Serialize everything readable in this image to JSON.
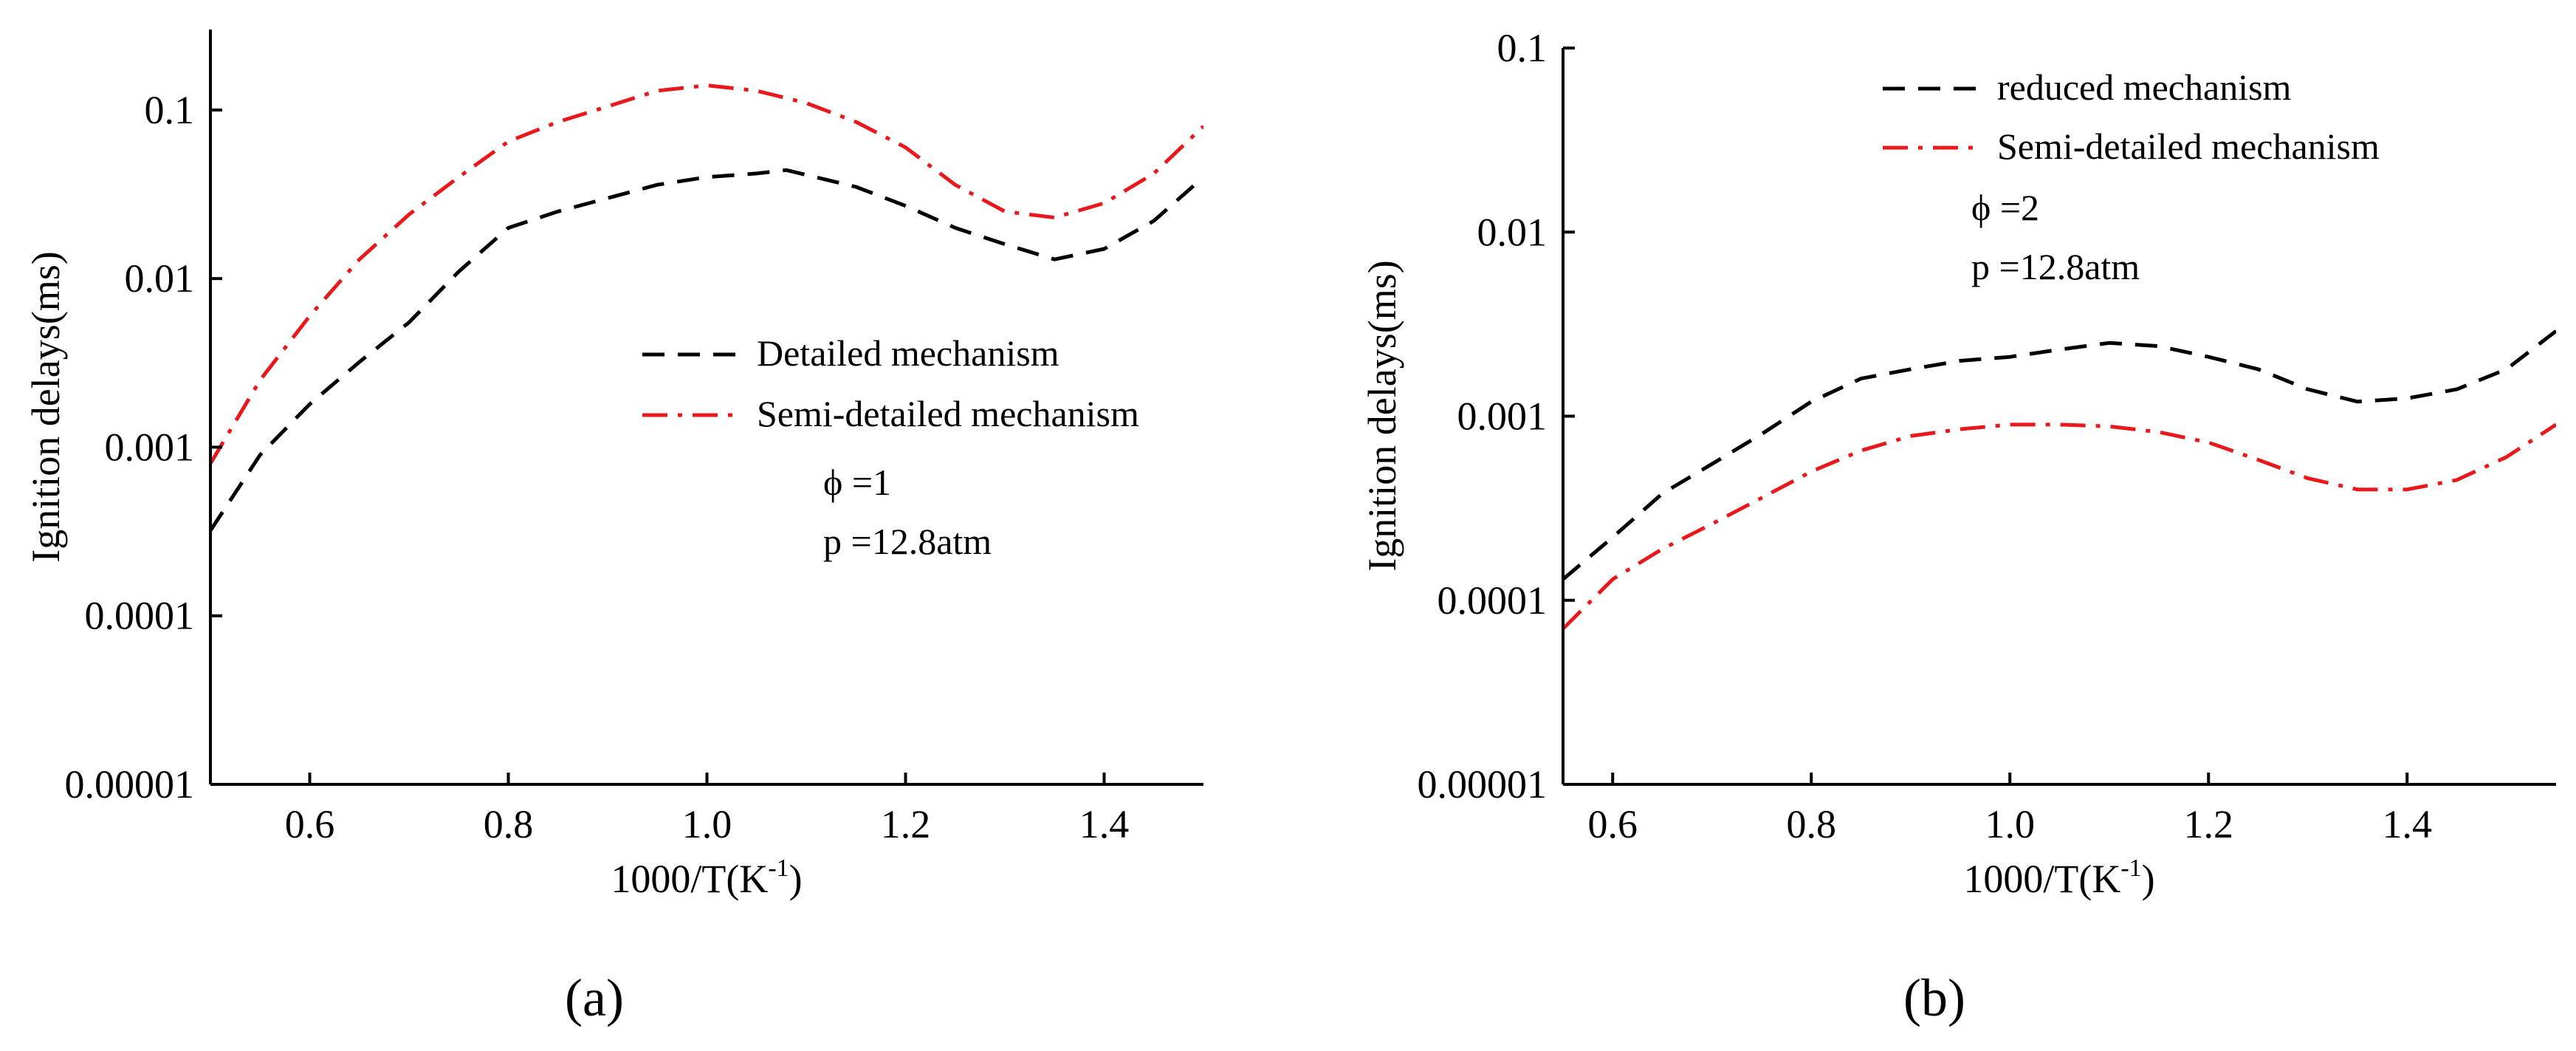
{
  "chart_data": [
    {
      "type": "line",
      "panel_label": "(a)",
      "xlabel": "1000/T(K",
      "xlabel_sup": "-1",
      "xlabel_close": ")",
      "ylabel": "Ignition delays(ms)",
      "yscale": "log",
      "xlim": [
        0.5,
        1.5
      ],
      "ylim": [
        1e-05,
        0.3
      ],
      "xticks": [
        0.6,
        0.8,
        1.0,
        1.2,
        1.4
      ],
      "xtick_labels": [
        "0.6",
        "0.8",
        "1.0",
        "1.2",
        "1.4"
      ],
      "yticks": [
        1e-05,
        0.0001,
        0.001,
        0.01,
        0.1
      ],
      "ytick_labels": [
        "0.00001",
        "0.0001",
        "0.001",
        "0.01",
        "0.1"
      ],
      "legend_position": "center-right",
      "annotations": [
        "ϕ =1",
        "p =12.8atm"
      ],
      "series": [
        {
          "name": "Detailed mechanism",
          "color": "#000000",
          "style": "dashed",
          "x": [
            0.5,
            0.55,
            0.6,
            0.65,
            0.7,
            0.75,
            0.8,
            0.85,
            0.9,
            0.95,
            1.0,
            1.05,
            1.08,
            1.15,
            1.2,
            1.25,
            1.3,
            1.35,
            1.4,
            1.45,
            1.5
          ],
          "y": [
            0.00032,
            0.0009,
            0.0018,
            0.0032,
            0.0055,
            0.011,
            0.02,
            0.025,
            0.03,
            0.036,
            0.04,
            0.042,
            0.044,
            0.035,
            0.027,
            0.02,
            0.016,
            0.013,
            0.015,
            0.022,
            0.04
          ]
        },
        {
          "name": "Semi-detailed mechanism",
          "color": "#e8191c",
          "style": "dashdot",
          "x": [
            0.5,
            0.55,
            0.6,
            0.65,
            0.7,
            0.75,
            0.8,
            0.85,
            0.9,
            0.95,
            1.0,
            1.05,
            1.1,
            1.15,
            1.2,
            1.25,
            1.3,
            1.35,
            1.4,
            1.45,
            1.5
          ],
          "y": [
            0.0008,
            0.0025,
            0.006,
            0.013,
            0.024,
            0.04,
            0.065,
            0.085,
            0.105,
            0.13,
            0.14,
            0.13,
            0.11,
            0.085,
            0.06,
            0.036,
            0.025,
            0.023,
            0.028,
            0.042,
            0.08
          ]
        }
      ]
    },
    {
      "type": "line",
      "panel_label": "(b)",
      "xlabel": "1000/T(K",
      "xlabel_sup": "-1",
      "xlabel_close": ")",
      "ylabel": "Ignition delays(ms)",
      "yscale": "log",
      "xlim": [
        0.55,
        1.55
      ],
      "ylim": [
        1e-05,
        0.1
      ],
      "xticks": [
        0.6,
        0.8,
        1.0,
        1.2,
        1.4
      ],
      "xtick_labels": [
        "0.6",
        "0.8",
        "1.0",
        "1.2",
        "1.4"
      ],
      "yticks": [
        1e-05,
        0.0001,
        0.001,
        0.01,
        0.1
      ],
      "ytick_labels": [
        "0.00001",
        "0.0001",
        "0.001",
        "0.01",
        "0.1"
      ],
      "legend_position": "top-left",
      "annotations": [
        "ϕ =2",
        "p =12.8atm"
      ],
      "series": [
        {
          "name": "reduced mechanism",
          "color": "#000000",
          "style": "dashed",
          "x": [
            0.55,
            0.6,
            0.65,
            0.7,
            0.75,
            0.8,
            0.85,
            0.9,
            0.95,
            1.0,
            1.05,
            1.1,
            1.15,
            1.2,
            1.25,
            1.3,
            1.35,
            1.4,
            1.45,
            1.5,
            1.55
          ],
          "y": [
            0.00013,
            0.00022,
            0.00038,
            0.00055,
            0.0008,
            0.0012,
            0.0016,
            0.0018,
            0.002,
            0.0021,
            0.0023,
            0.0025,
            0.0024,
            0.0021,
            0.0018,
            0.0014,
            0.0012,
            0.00125,
            0.0014,
            0.0018,
            0.0029
          ]
        },
        {
          "name": "Semi-detailed mechanism",
          "color": "#e8191c",
          "style": "dashdot",
          "x": [
            0.55,
            0.6,
            0.65,
            0.7,
            0.75,
            0.8,
            0.85,
            0.9,
            0.95,
            1.0,
            1.05,
            1.1,
            1.15,
            1.2,
            1.25,
            1.3,
            1.35,
            1.4,
            1.45,
            1.5,
            1.55
          ],
          "y": [
            7e-05,
            0.00013,
            0.00019,
            0.00026,
            0.00036,
            0.0005,
            0.00065,
            0.00078,
            0.00085,
            0.0009,
            0.0009,
            0.00088,
            0.00082,
            0.00072,
            0.00058,
            0.00046,
            0.0004,
            0.0004,
            0.00045,
            0.0006,
            0.0009
          ]
        }
      ]
    }
  ]
}
